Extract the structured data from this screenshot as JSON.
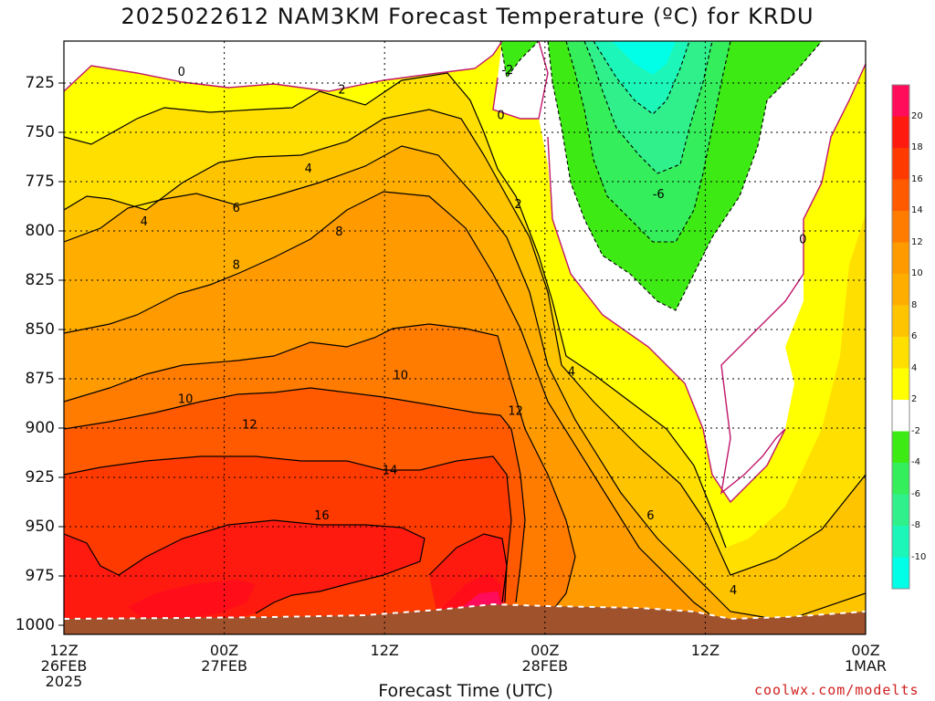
{
  "title": "2025022612 NAM3KM Forecast Temperature (ºC) for KRDU",
  "watermark": "coolwx.com/modelts",
  "chart_data": {
    "type": "heatmap",
    "title": "2025022612 NAM3KM Forecast Temperature (ºC) for KRDU",
    "xlabel": "Forecast Time (UTC)",
    "ylabel": "",
    "x_ticks": [
      {
        "line1": "12Z",
        "line2": "26FEB",
        "line3": "2025",
        "hour": 0
      },
      {
        "line1": "00Z",
        "line2": "27FEB",
        "line3": "",
        "hour": 12
      },
      {
        "line1": "12Z",
        "line2": "",
        "line3": "",
        "hour": 24
      },
      {
        "line1": "00Z",
        "line2": "28FEB",
        "line3": "",
        "hour": 36
      },
      {
        "line1": "12Z",
        "line2": "",
        "line3": "",
        "hour": 48
      },
      {
        "line1": "00Z",
        "line2": "1MAR",
        "line3": "",
        "hour": 60
      }
    ],
    "y_ticks": [
      725,
      750,
      775,
      800,
      825,
      850,
      875,
      900,
      925,
      950,
      975,
      1000
    ],
    "ylim": [
      1000,
      700
    ],
    "xlim": [
      0,
      60
    ],
    "grid": true,
    "colorbar": {
      "levels": [
        20,
        18,
        16,
        14,
        12,
        10,
        8,
        6,
        4,
        2,
        -2,
        -4,
        -6,
        -8,
        -10
      ],
      "colors": [
        "#ff0c5a",
        "#ff1a10",
        "#ff3a00",
        "#ff5a00",
        "#ff7c00",
        "#ff9a00",
        "#ffae00",
        "#ffc400",
        "#ffdf00",
        "#ffff00",
        "#ffffff",
        "#3eea14",
        "#34ee5c",
        "#30f08c",
        "#1cf6b8",
        "#00ffe6"
      ]
    },
    "contour_labels": [
      {
        "text": "0",
        "hour": 8.8,
        "p": 719
      },
      {
        "text": "2",
        "hour": 20.8,
        "p": 728
      },
      {
        "text": "-2",
        "hour": 33.2,
        "p": 718
      },
      {
        "text": "0",
        "hour": 32.7,
        "p": 741
      },
      {
        "text": "-6",
        "hour": 44.5,
        "p": 781
      },
      {
        "text": "4",
        "hour": 18.3,
        "p": 768
      },
      {
        "text": "2",
        "hour": 34.0,
        "p": 786
      },
      {
        "text": "4",
        "hour": 6.0,
        "p": 795
      },
      {
        "text": "6",
        "hour": 12.9,
        "p": 788
      },
      {
        "text": "8",
        "hour": 20.6,
        "p": 800
      },
      {
        "text": "8",
        "hour": 12.9,
        "p": 817
      },
      {
        "text": "0",
        "hour": 55.3,
        "p": 804
      },
      {
        "text": "10",
        "hour": 9.1,
        "p": 885
      },
      {
        "text": "10",
        "hour": 25.2,
        "p": 873
      },
      {
        "text": "4",
        "hour": 38.0,
        "p": 871
      },
      {
        "text": "12",
        "hour": 13.9,
        "p": 898
      },
      {
        "text": "12",
        "hour": 33.8,
        "p": 891
      },
      {
        "text": "14",
        "hour": 24.4,
        "p": 921
      },
      {
        "text": "16",
        "hour": 19.3,
        "p": 944
      },
      {
        "text": "6",
        "hour": 43.9,
        "p": 944
      },
      {
        "text": "4",
        "hour": 50.1,
        "p": 982
      }
    ]
  }
}
